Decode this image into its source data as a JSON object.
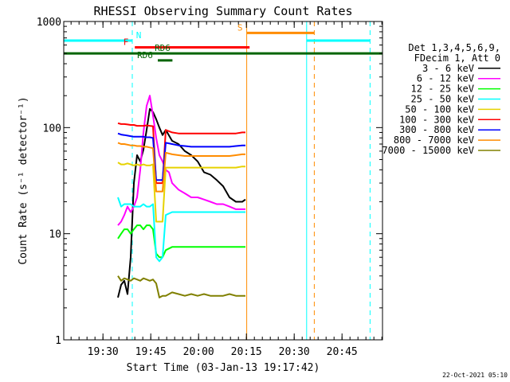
{
  "chart_data": {
    "type": "line",
    "title": "RHESSI Observing Summary Count Rates",
    "xlabel": "Start Time (03-Jan-13 19:17:42)",
    "ylabel": "Count Rate (s⁻¹ detector⁻¹)",
    "x_units": "minutes since 19:17:42",
    "xlim": [
      0,
      100
    ],
    "ylim": [
      1,
      1000
    ],
    "yscale": "log",
    "x_ticks": [
      {
        "label": "19:30",
        "value": 12.3
      },
      {
        "label": "19:45",
        "value": 27.3
      },
      {
        "label": "20:00",
        "value": 42.3
      },
      {
        "label": "20:15",
        "value": 57.3
      },
      {
        "label": "20:30",
        "value": 72.3
      },
      {
        "label": "20:45",
        "value": 87.3
      }
    ],
    "y_ticks": [
      {
        "label": "1",
        "value": 1
      },
      {
        "label": "10",
        "value": 10
      },
      {
        "label": "100",
        "value": 100
      },
      {
        "label": "1000",
        "value": 1000
      }
    ],
    "legend": {
      "header": [
        "Det 1,3,4,5,6,9,",
        "FDecim 1, Att 0"
      ],
      "placement": "right"
    },
    "series": [
      {
        "name": "3 - 6 keV",
        "color": "#000000",
        "points": [
          [
            17,
            2.5
          ],
          [
            18,
            3.3
          ],
          [
            19,
            3.6
          ],
          [
            20,
            2.7
          ],
          [
            21,
            6
          ],
          [
            22,
            30
          ],
          [
            23,
            55
          ],
          [
            24,
            48
          ],
          [
            25,
            62
          ],
          [
            26,
            95
          ],
          [
            27,
            150
          ],
          [
            28,
            140
          ],
          [
            29,
            120
          ],
          [
            30,
            100
          ],
          [
            31,
            85
          ],
          [
            32,
            95
          ],
          [
            34,
            75
          ],
          [
            36,
            70
          ],
          [
            38,
            60
          ],
          [
            40,
            55
          ],
          [
            42,
            48
          ],
          [
            44,
            38
          ],
          [
            46,
            36
          ],
          [
            48,
            32
          ],
          [
            50,
            28
          ],
          [
            52,
            22
          ],
          [
            54,
            20
          ],
          [
            56,
            20
          ],
          [
            57,
            21
          ]
        ]
      },
      {
        "name": "6 - 12 keV",
        "color": "#ff00ff",
        "points": [
          [
            17,
            12
          ],
          [
            18,
            13
          ],
          [
            19,
            15
          ],
          [
            20,
            18
          ],
          [
            21,
            16
          ],
          [
            22,
            18
          ],
          [
            23,
            22
          ],
          [
            24,
            40
          ],
          [
            25,
            90
          ],
          [
            26,
            160
          ],
          [
            27,
            200
          ],
          [
            28,
            130
          ],
          [
            29,
            80
          ],
          [
            30,
            55
          ],
          [
            31,
            48
          ],
          [
            32,
            40
          ],
          [
            33,
            38
          ],
          [
            34,
            30
          ],
          [
            36,
            26
          ],
          [
            38,
            24
          ],
          [
            40,
            22
          ],
          [
            42,
            22
          ],
          [
            44,
            21
          ],
          [
            46,
            20
          ],
          [
            48,
            19
          ],
          [
            50,
            19
          ],
          [
            52,
            18
          ],
          [
            54,
            17
          ],
          [
            56,
            17
          ],
          [
            57,
            17
          ]
        ]
      },
      {
        "name": "12 - 25 keV",
        "color": "#00ff00",
        "points": [
          [
            17,
            9
          ],
          [
            18,
            10
          ],
          [
            19,
            11
          ],
          [
            20,
            11
          ],
          [
            21,
            10
          ],
          [
            22,
            11
          ],
          [
            23,
            12
          ],
          [
            24,
            12
          ],
          [
            25,
            11
          ],
          [
            26,
            12
          ],
          [
            27,
            12
          ],
          [
            28,
            11
          ],
          [
            29,
            6.5
          ],
          [
            30,
            6
          ],
          [
            31,
            6
          ],
          [
            32,
            7
          ],
          [
            34,
            7.5
          ],
          [
            36,
            7.5
          ],
          [
            38,
            7.5
          ],
          [
            40,
            7.5
          ],
          [
            42,
            7.5
          ],
          [
            44,
            7.5
          ],
          [
            46,
            7.5
          ],
          [
            48,
            7.5
          ],
          [
            50,
            7.5
          ],
          [
            52,
            7.5
          ],
          [
            54,
            7.5
          ],
          [
            56,
            7.5
          ],
          [
            57,
            7.5
          ]
        ]
      },
      {
        "name": "25 - 50 keV",
        "color": "#00ffff",
        "points": [
          [
            17,
            22
          ],
          [
            18,
            18
          ],
          [
            19,
            19
          ],
          [
            20,
            19
          ],
          [
            21,
            19
          ],
          [
            22,
            18
          ],
          [
            23,
            18
          ],
          [
            24,
            18
          ],
          [
            25,
            19
          ],
          [
            26,
            18
          ],
          [
            27,
            18
          ],
          [
            28,
            19
          ],
          [
            29,
            6
          ],
          [
            30,
            5.5
          ],
          [
            31,
            6
          ],
          [
            32,
            15
          ],
          [
            34,
            16
          ],
          [
            36,
            16
          ],
          [
            38,
            16
          ],
          [
            40,
            16
          ],
          [
            42,
            16
          ],
          [
            44,
            16
          ],
          [
            46,
            16
          ],
          [
            48,
            16
          ],
          [
            50,
            16
          ],
          [
            52,
            16
          ],
          [
            54,
            16
          ],
          [
            56,
            16
          ],
          [
            57,
            16
          ]
        ]
      },
      {
        "name": "50 - 100 keV",
        "color": "#e6d200",
        "points": [
          [
            17,
            47
          ],
          [
            18,
            45
          ],
          [
            19,
            45
          ],
          [
            20,
            46
          ],
          [
            21,
            45
          ],
          [
            22,
            44
          ],
          [
            23,
            45
          ],
          [
            24,
            44
          ],
          [
            25,
            45
          ],
          [
            26,
            44
          ],
          [
            27,
            44
          ],
          [
            28,
            45
          ],
          [
            29,
            13
          ],
          [
            30,
            13
          ],
          [
            31,
            13
          ],
          [
            32,
            42
          ],
          [
            34,
            42
          ],
          [
            36,
            42
          ],
          [
            38,
            42
          ],
          [
            40,
            42
          ],
          [
            42,
            42
          ],
          [
            44,
            42
          ],
          [
            46,
            42
          ],
          [
            48,
            42
          ],
          [
            50,
            42
          ],
          [
            52,
            42
          ],
          [
            54,
            42
          ],
          [
            56,
            43
          ],
          [
            57,
            43
          ]
        ]
      },
      {
        "name": "100 - 300 keV",
        "color": "#ff0000",
        "points": [
          [
            17,
            110
          ],
          [
            18,
            108
          ],
          [
            19,
            108
          ],
          [
            20,
            107
          ],
          [
            21,
            106
          ],
          [
            22,
            106
          ],
          [
            23,
            104
          ],
          [
            24,
            104
          ],
          [
            25,
            104
          ],
          [
            26,
            105
          ],
          [
            27,
            104
          ],
          [
            28,
            103
          ],
          [
            29,
            30
          ],
          [
            30,
            30
          ],
          [
            31,
            30
          ],
          [
            32,
            95
          ],
          [
            34,
            90
          ],
          [
            36,
            88
          ],
          [
            38,
            88
          ],
          [
            40,
            88
          ],
          [
            42,
            88
          ],
          [
            44,
            88
          ],
          [
            46,
            88
          ],
          [
            48,
            88
          ],
          [
            50,
            88
          ],
          [
            52,
            88
          ],
          [
            54,
            88
          ],
          [
            56,
            90
          ],
          [
            57,
            90
          ]
        ]
      },
      {
        "name": "300 - 800 keV",
        "color": "#0000ff",
        "points": [
          [
            17,
            88
          ],
          [
            18,
            86
          ],
          [
            19,
            85
          ],
          [
            20,
            84
          ],
          [
            21,
            83
          ],
          [
            22,
            82
          ],
          [
            23,
            82
          ],
          [
            24,
            82
          ],
          [
            25,
            82
          ],
          [
            26,
            81
          ],
          [
            27,
            81
          ],
          [
            28,
            80
          ],
          [
            29,
            32
          ],
          [
            30,
            32
          ],
          [
            31,
            32
          ],
          [
            32,
            72
          ],
          [
            34,
            70
          ],
          [
            36,
            68
          ],
          [
            38,
            67
          ],
          [
            40,
            66
          ],
          [
            42,
            66
          ],
          [
            44,
            66
          ],
          [
            46,
            66
          ],
          [
            48,
            66
          ],
          [
            50,
            66
          ],
          [
            52,
            66
          ],
          [
            54,
            67
          ],
          [
            56,
            68
          ],
          [
            57,
            68
          ]
        ]
      },
      {
        "name": "800 - 7000 keV",
        "color": "#ff8c00",
        "points": [
          [
            17,
            72
          ],
          [
            18,
            70
          ],
          [
            19,
            70
          ],
          [
            20,
            69
          ],
          [
            21,
            68
          ],
          [
            22,
            68
          ],
          [
            23,
            67
          ],
          [
            24,
            67
          ],
          [
            25,
            66
          ],
          [
            26,
            66
          ],
          [
            27,
            65
          ],
          [
            28,
            64
          ],
          [
            29,
            25
          ],
          [
            30,
            25
          ],
          [
            31,
            25
          ],
          [
            32,
            58
          ],
          [
            34,
            56
          ],
          [
            36,
            55
          ],
          [
            38,
            54
          ],
          [
            40,
            54
          ],
          [
            42,
            54
          ],
          [
            44,
            54
          ],
          [
            46,
            54
          ],
          [
            48,
            54
          ],
          [
            50,
            54
          ],
          [
            52,
            54
          ],
          [
            54,
            55
          ],
          [
            56,
            56
          ],
          [
            57,
            56
          ]
        ]
      },
      {
        "name": "7000 - 15000 keV",
        "color": "#808000",
        "points": [
          [
            17,
            4
          ],
          [
            18,
            3.6
          ],
          [
            19,
            3.8
          ],
          [
            20,
            3.7
          ],
          [
            21,
            3.6
          ],
          [
            22,
            3.8
          ],
          [
            23,
            3.7
          ],
          [
            24,
            3.6
          ],
          [
            25,
            3.8
          ],
          [
            26,
            3.7
          ],
          [
            27,
            3.6
          ],
          [
            28,
            3.7
          ],
          [
            29,
            3.4
          ],
          [
            30,
            2.5
          ],
          [
            31,
            2.6
          ],
          [
            32,
            2.6
          ],
          [
            34,
            2.8
          ],
          [
            36,
            2.7
          ],
          [
            38,
            2.6
          ],
          [
            40,
            2.7
          ],
          [
            42,
            2.6
          ],
          [
            44,
            2.7
          ],
          [
            46,
            2.6
          ],
          [
            48,
            2.6
          ],
          [
            50,
            2.6
          ],
          [
            52,
            2.7
          ],
          [
            54,
            2.6
          ],
          [
            56,
            2.6
          ],
          [
            57,
            2.6
          ]
        ]
      }
    ],
    "vertical_markers": [
      {
        "x": 0.0,
        "color": "#00ffff",
        "style": "solid"
      },
      {
        "x": 21.5,
        "color": "#00ffff",
        "style": "dashed"
      },
      {
        "x": 57.4,
        "color": "#ff8c00",
        "style": "solid"
      },
      {
        "x": 76.2,
        "color": "#00ffff",
        "style": "solid"
      },
      {
        "x": 78.6,
        "color": "#ff8c00",
        "style": "dashed"
      },
      {
        "x": 96.1,
        "color": "#00ffff",
        "style": "dashed"
      }
    ],
    "flag_bars": [
      {
        "label": "N",
        "label_at": 23.5,
        "color": "#00ffff",
        "x": [
          0,
          21.5
        ],
        "y": 660
      },
      {
        "label": "",
        "label_at": null,
        "color": "#00ffff",
        "x": [
          76.2,
          96.1
        ],
        "y": 660
      },
      {
        "label": "F",
        "label_at": 19.5,
        "color": "#ff0000",
        "x": [
          22.3,
          58.3
        ],
        "y": 570
      },
      {
        "label": "S",
        "label_at": 55.3,
        "color": "#ff8c00",
        "x": [
          57.4,
          78.6
        ],
        "y": 780
      },
      {
        "label": "RD6",
        "label_at": 25.5,
        "color": "#006400",
        "x": [
          29.5,
          34.1
        ],
        "y": 430
      },
      {
        "label": "RD6",
        "label_at": 31.0,
        "color": "#006400",
        "x": [
          0,
          100
        ],
        "y": 500
      }
    ],
    "timestamp": "22-Oct-2021 05:10"
  }
}
